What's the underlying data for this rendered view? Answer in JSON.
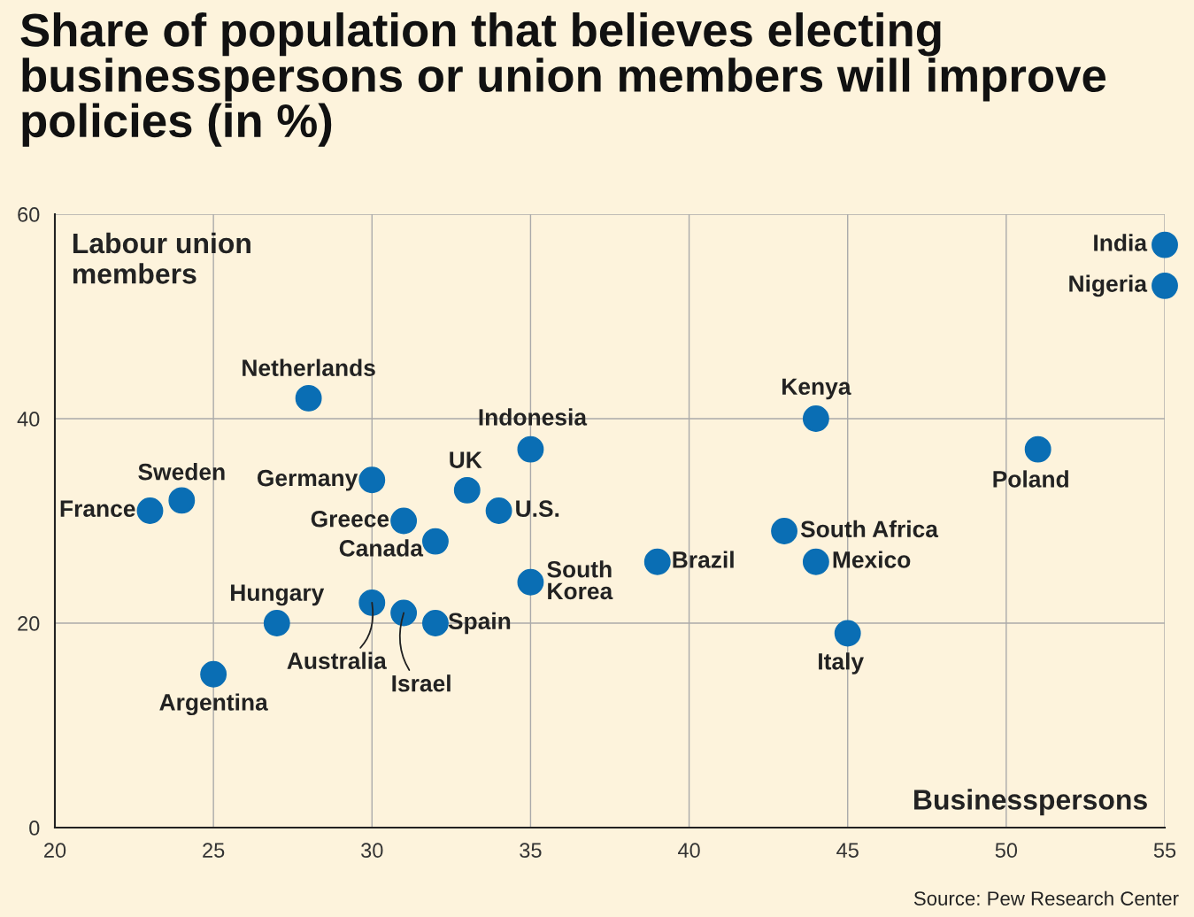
{
  "chart_data": {
    "type": "scatter",
    "title": "Share of population that believes electing businesspersons or union members will improve policies (in %)",
    "xlabel": "Businesspersons",
    "ylabel": "Labour union\nmembers",
    "x": [
      55,
      55,
      28,
      44,
      35,
      51,
      24,
      23,
      30,
      33,
      34,
      31,
      32,
      43,
      44,
      39,
      35,
      30,
      31,
      32,
      27,
      45,
      25
    ],
    "series": [
      {
        "color": "#0a6eb4",
        "values": [
          57,
          53,
          42,
          40,
          37,
          37,
          32,
          31,
          34,
          33,
          31,
          30,
          28,
          29,
          26,
          26,
          24,
          22,
          21,
          20,
          20,
          19,
          15
        ]
      }
    ],
    "xlim": [
      20,
      55
    ],
    "xticks": [
      20,
      25,
      30,
      35,
      40,
      45,
      50,
      55
    ],
    "ylim": [
      0,
      60
    ],
    "yticks": [
      0,
      20,
      40,
      60
    ],
    "grid": true,
    "marker": "circle",
    "legend": false,
    "annotations": [
      {
        "text": "India",
        "x": 55,
        "y": 57
      },
      {
        "text": "Nigeria",
        "x": 55,
        "y": 53
      },
      {
        "text": "Netherlands",
        "x": 28,
        "y": 42
      },
      {
        "text": "Kenya",
        "x": 44,
        "y": 40
      },
      {
        "text": "Indonesia",
        "x": 35,
        "y": 37
      },
      {
        "text": "Poland",
        "x": 51,
        "y": 37
      },
      {
        "text": "Sweden",
        "x": 24,
        "y": 32
      },
      {
        "text": "France",
        "x": 23,
        "y": 31
      },
      {
        "text": "Germany",
        "x": 30,
        "y": 34
      },
      {
        "text": "UK",
        "x": 33,
        "y": 33
      },
      {
        "text": "U.S.",
        "x": 34,
        "y": 31
      },
      {
        "text": "Greece",
        "x": 31,
        "y": 30
      },
      {
        "text": "Canada",
        "x": 32,
        "y": 28
      },
      {
        "text": "South Africa",
        "x": 43,
        "y": 29
      },
      {
        "text": "Mexico",
        "x": 44,
        "y": 26
      },
      {
        "text": "Brazil",
        "x": 39,
        "y": 26
      },
      {
        "text": "South\nKorea",
        "x": 35,
        "y": 24
      },
      {
        "text": "Australia",
        "x": 30,
        "y": 22
      },
      {
        "text": "Israel",
        "x": 31,
        "y": 21
      },
      {
        "text": "Spain",
        "x": 32,
        "y": 20
      },
      {
        "text": "Hungary",
        "x": 27,
        "y": 20
      },
      {
        "text": "Italy",
        "x": 45,
        "y": 19
      },
      {
        "text": "Argentina",
        "x": 25,
        "y": 15
      },
      "Source: Pew Research Center"
    ]
  }
}
